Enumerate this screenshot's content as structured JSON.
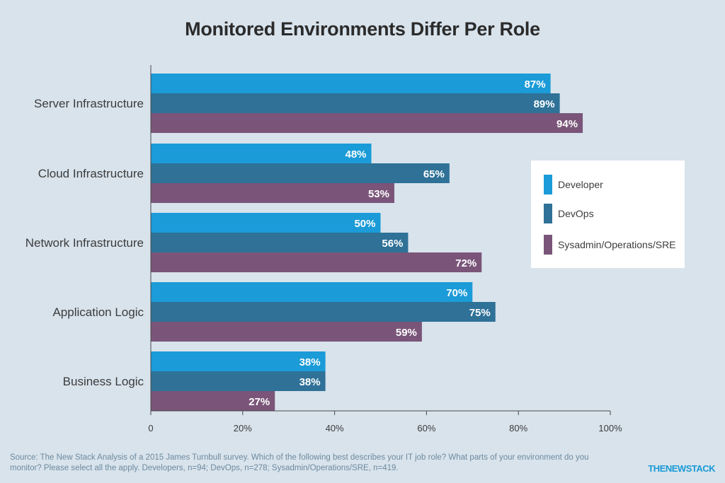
{
  "chart_data": {
    "type": "bar",
    "orientation": "horizontal",
    "title": "Monitored Environments Differ Per Role",
    "categories": [
      "Server Infrastructure",
      "Cloud Infrastructure",
      "Network Infrastructure",
      "Application Logic",
      "Business Logic"
    ],
    "series": [
      {
        "name": "Developer",
        "color": "#1b9bd7",
        "values": [
          87,
          48,
          50,
          70,
          38
        ]
      },
      {
        "name": "DevOps",
        "color": "#2f7197",
        "values": [
          89,
          65,
          56,
          75,
          38
        ]
      },
      {
        "name": "Sysadmin/Operations/SRE",
        "color": "#7a5579",
        "values": [
          94,
          53,
          72,
          59,
          27
        ]
      }
    ],
    "value_suffix": "%",
    "xlim": [
      0,
      100
    ],
    "xticks": [
      "0",
      "20%",
      "40%",
      "60%",
      "80%",
      "100%"
    ],
    "grid": false,
    "legend_position": "right"
  },
  "source": "Source: The New Stack Analysis of a 2015 James Turnbull survey. Which of the following best describes your IT job role? What parts of your environment do you monitor? Please select all the apply. Developers, n=94; DevOps, n=278; Sysadmin/Operations/SRE, n=419.",
  "brand": "THENEWSTACK"
}
